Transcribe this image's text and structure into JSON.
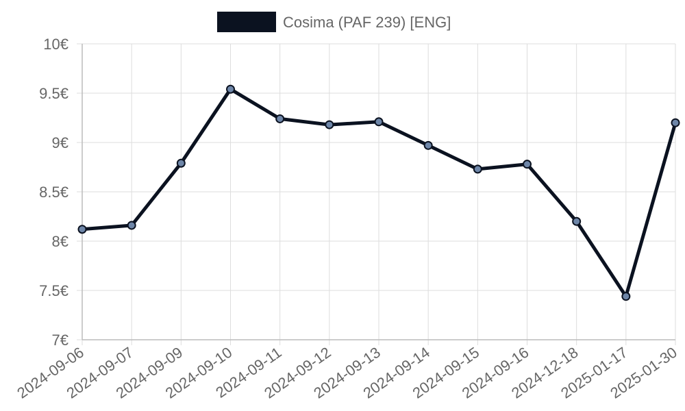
{
  "chart_data": {
    "type": "line",
    "legend": {
      "label": "Cosima (PAF 239) [ENG]",
      "placement": "top-center"
    },
    "categories": [
      "2024-09-06",
      "2024-09-07",
      "2024-09-09",
      "2024-09-10",
      "2024-09-11",
      "2024-09-12",
      "2024-09-13",
      "2024-09-14",
      "2024-09-15",
      "2024-09-16",
      "2024-12-18",
      "2025-01-17",
      "2025-01-30"
    ],
    "series": [
      {
        "name": "Cosima (PAF 239) [ENG]",
        "values": [
          8.12,
          8.16,
          8.79,
          9.54,
          9.24,
          9.18,
          9.21,
          8.97,
          8.73,
          8.78,
          8.2,
          7.44,
          9.2
        ]
      }
    ],
    "ylim": [
      7,
      10
    ],
    "yticks": [
      {
        "value": 10,
        "label": "10€"
      },
      {
        "value": 9.5,
        "label": "9.5€"
      },
      {
        "value": 9,
        "label": "9€"
      },
      {
        "value": 8.5,
        "label": "8.5€"
      },
      {
        "value": 8,
        "label": "8€"
      },
      {
        "value": 7.5,
        "label": "7.5€"
      },
      {
        "value": 7,
        "label": "7€"
      }
    ],
    "grid": true,
    "colors": {
      "line": "#0b1220",
      "point_fill": "#6e86a8",
      "grid": "#dddddd",
      "text": "#666666"
    }
  }
}
